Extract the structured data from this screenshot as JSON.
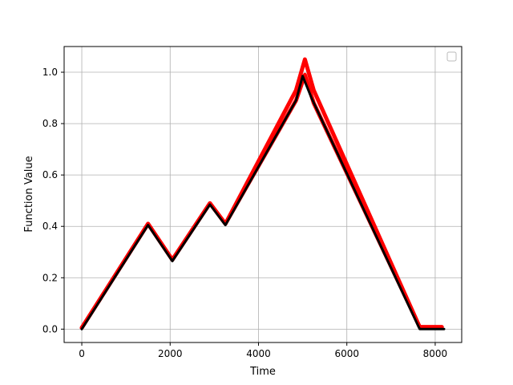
{
  "chart_data": {
    "type": "line",
    "title": "",
    "xlabel": "Time",
    "ylabel": "Function Value",
    "xlim": [
      -400,
      8600
    ],
    "ylim": [
      -0.052,
      1.1
    ],
    "xticks": [
      0,
      2000,
      4000,
      6000,
      8000
    ],
    "xtick_labels": [
      "0",
      "2000",
      "4000",
      "6000",
      "8000"
    ],
    "yticks": [
      0.0,
      0.2,
      0.4,
      0.6,
      0.8,
      1.0
    ],
    "ytick_labels": [
      "0.0",
      "0.2",
      "0.4",
      "0.6",
      "0.8",
      "1.0"
    ],
    "grid": true,
    "legend": {
      "placement": "top-right",
      "entries": []
    },
    "series": [
      {
        "color": "#ff0000",
        "width": 5,
        "x": [
          0,
          1500,
          2050,
          2900,
          3250,
          4850,
          5050,
          5250,
          7650,
          8150
        ],
        "y": [
          0.005,
          0.41,
          0.27,
          0.49,
          0.41,
          0.93,
          1.05,
          0.93,
          0.008,
          0.008
        ]
      },
      {
        "color": "#ff0000",
        "width": 5,
        "x": [
          0,
          1500,
          2050,
          2900,
          3250,
          4850,
          5050,
          5250,
          7650,
          8150
        ],
        "y": [
          0.005,
          0.41,
          0.27,
          0.49,
          0.41,
          0.89,
          0.99,
          0.88,
          0.008,
          0.008
        ]
      },
      {
        "color": "#000000",
        "width": 3,
        "x": [
          0,
          1500,
          2050,
          2900,
          3250,
          4850,
          5000,
          5200,
          7650,
          8200
        ],
        "y": [
          0.0,
          0.405,
          0.265,
          0.485,
          0.405,
          0.89,
          0.985,
          0.9,
          0.0,
          0.0
        ]
      }
    ]
  }
}
